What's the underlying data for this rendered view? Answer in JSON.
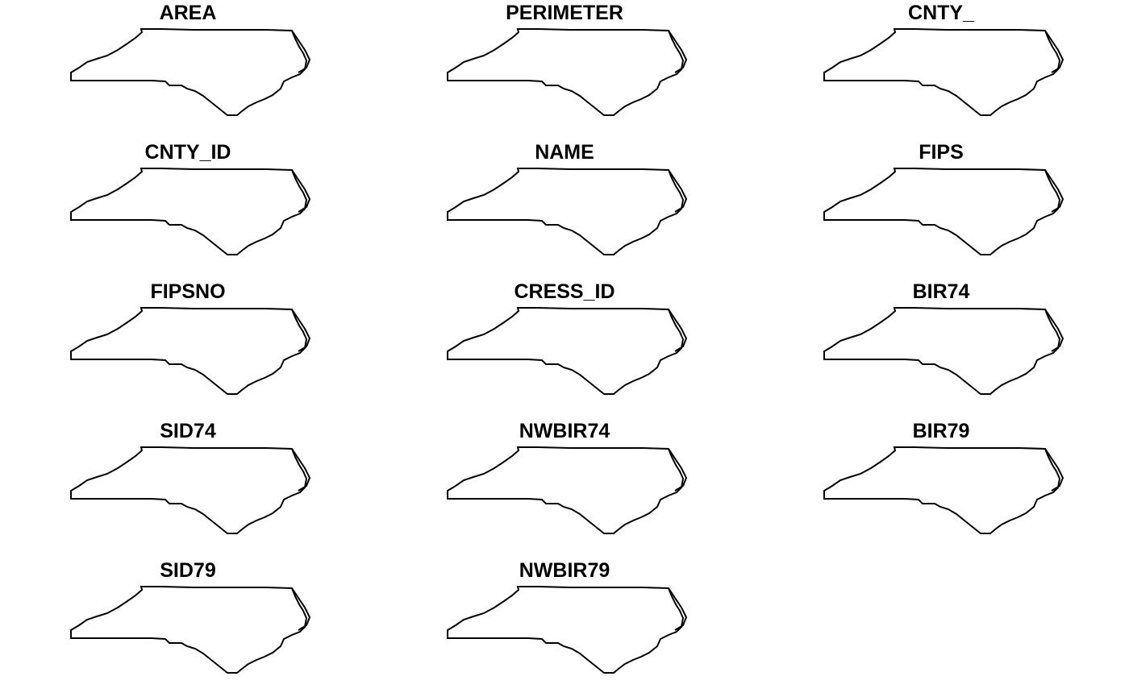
{
  "figure": {
    "panels": [
      {
        "title": "AREA",
        "palette": "sf"
      },
      {
        "title": "PERIMETER",
        "palette": "sf"
      },
      {
        "title": "CNTY_",
        "palette": "sf"
      },
      {
        "title": "CNTY_ID",
        "palette": "sf"
      },
      {
        "title": "NAME",
        "palette": "qualitative"
      },
      {
        "title": "FIPS",
        "palette": "qualitative"
      },
      {
        "title": "FIPSNO",
        "palette": "sf"
      },
      {
        "title": "CRESS_ID",
        "palette": "sf"
      },
      {
        "title": "BIR74",
        "palette": "sf"
      },
      {
        "title": "SID74",
        "palette": "sf"
      },
      {
        "title": "NWBIR74",
        "palette": "sf"
      },
      {
        "title": "BIR79",
        "palette": "sf"
      },
      {
        "title": "SID79",
        "palette": "sf"
      },
      {
        "title": "NWBIR79",
        "palette": "sf"
      }
    ],
    "colors": {
      "sf": [
        "#0d0887",
        "#0000ff",
        "#5b00ff",
        "#9b17ff",
        "#d93ad6",
        "#ff4f9a",
        "#ff6b6b",
        "#ff9a5a",
        "#ffc43d",
        "#ffff00"
      ],
      "qualitative": [
        "#8dd3c7",
        "#ffffb3",
        "#bebada",
        "#fb8072",
        "#80b1d3",
        "#fdb462",
        "#b3de69",
        "#fccde5",
        "#d9d9d9",
        "#bc80bd",
        "#ccebc5",
        "#ffed6f"
      ],
      "border": "#000000",
      "background": "#ffffff"
    }
  }
}
